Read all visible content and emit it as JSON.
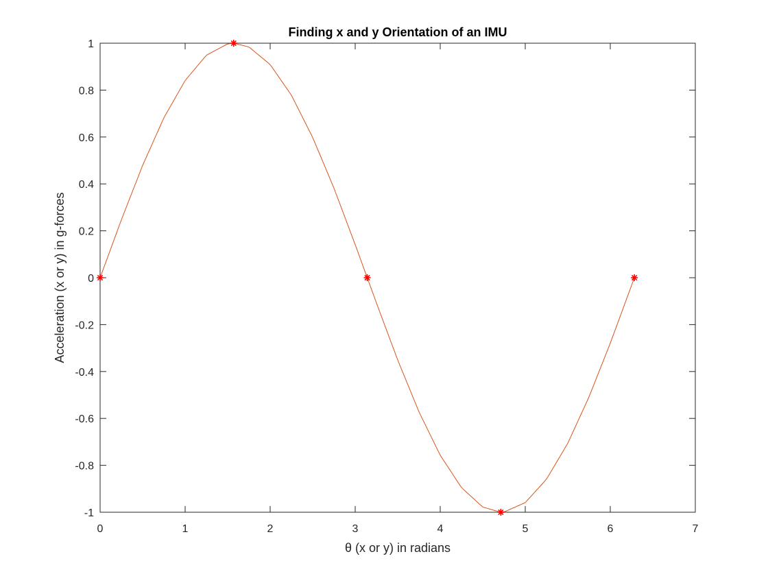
{
  "chart_data": {
    "type": "line",
    "title": "Finding x and y Orientation of an IMU",
    "xlabel": "θ (x or y) in radians",
    "ylabel": "Acceleration (x or y) in g-forces",
    "xlim": [
      0,
      7
    ],
    "ylim": [
      -1,
      1
    ],
    "grid": false,
    "box": true,
    "xticks": [
      0,
      1,
      2,
      3,
      4,
      5,
      6,
      7
    ],
    "xtick_labels": [
      "0",
      "1",
      "2",
      "3",
      "4",
      "5",
      "6",
      "7"
    ],
    "yticks": [
      -1,
      -0.8,
      -0.6,
      -0.4,
      -0.2,
      0,
      0.2,
      0.4,
      0.6,
      0.8,
      1
    ],
    "ytick_labels": [
      "-1",
      "-0.8",
      "-0.6",
      "-0.4",
      "-0.2",
      "0",
      "0.2",
      "0.4",
      "0.6",
      "0.8",
      "1"
    ],
    "series": [
      {
        "kind": "line",
        "color": "#d95319",
        "x": [
          0,
          0.25,
          0.5,
          0.75,
          1.0,
          1.25,
          1.5,
          1.5708,
          1.75,
          2.0,
          2.25,
          2.5,
          2.75,
          3.0,
          3.1416,
          3.25,
          3.5,
          3.75,
          4.0,
          4.25,
          4.5,
          4.7124,
          4.75,
          5.0,
          5.25,
          5.5,
          5.75,
          6.0,
          6.25,
          6.2832
        ],
        "y": [
          0,
          0.247,
          0.479,
          0.682,
          0.841,
          0.949,
          0.997,
          1.0,
          0.984,
          0.909,
          0.778,
          0.598,
          0.382,
          0.141,
          0,
          -0.108,
          -0.351,
          -0.572,
          -0.757,
          -0.895,
          -0.978,
          -1.0,
          -0.999,
          -0.959,
          -0.859,
          -0.706,
          -0.508,
          -0.279,
          -0.033,
          0
        ]
      },
      {
        "kind": "markers",
        "marker": "asterisk",
        "color": "#ff0000",
        "x": [
          0,
          1.5708,
          3.1416,
          4.7124,
          6.2832
        ],
        "y": [
          0,
          1,
          0,
          -1,
          0
        ]
      }
    ]
  }
}
